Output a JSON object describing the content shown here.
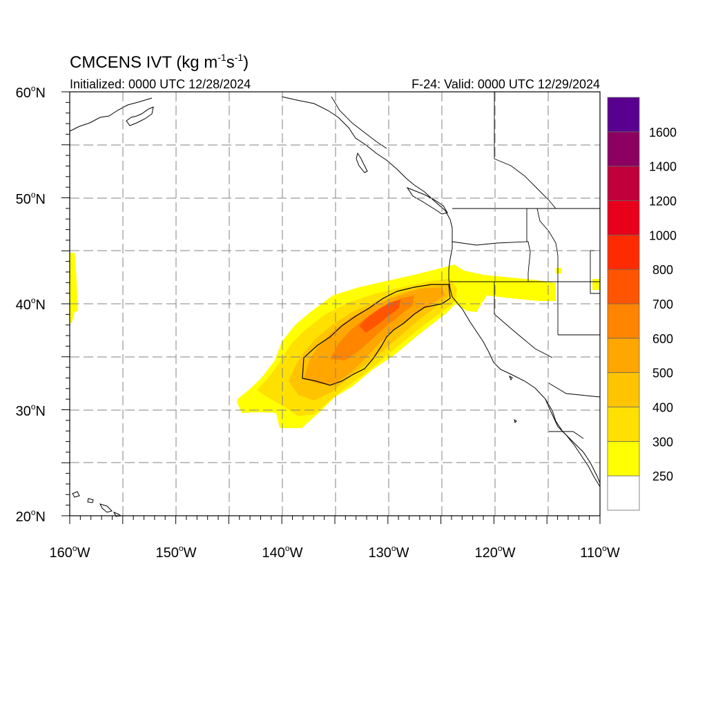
{
  "title": {
    "main": "CMCENS IVT (kg m",
    "exp1": "-1",
    "mid": "s",
    "exp2": "-1",
    "close": ")"
  },
  "subtitle_left": "Initialized: 0000 UTC 12/28/2024",
  "subtitle_right": "F-24: Valid: 0000 UTC 12/29/2024",
  "map": {
    "lon_range": [
      -160,
      -110
    ],
    "lat_range": [
      20,
      60
    ],
    "lat_labels": [
      {
        "num": "60",
        "deg": "o",
        "hem": "N"
      },
      {
        "num": "50",
        "deg": "o",
        "hem": "N"
      },
      {
        "num": "40",
        "deg": "o",
        "hem": "N"
      },
      {
        "num": "30",
        "deg": "o",
        "hem": "N"
      },
      {
        "num": "20",
        "deg": "o",
        "hem": "N"
      }
    ],
    "lon_labels": [
      {
        "num": "160",
        "deg": "o",
        "hem": "W"
      },
      {
        "num": "150",
        "deg": "o",
        "hem": "W"
      },
      {
        "num": "140",
        "deg": "o",
        "hem": "W"
      },
      {
        "num": "130",
        "deg": "o",
        "hem": "W"
      },
      {
        "num": "120",
        "deg": "o",
        "hem": "W"
      },
      {
        "num": "110",
        "deg": "o",
        "hem": "W"
      }
    ],
    "gridlines": "dashed every 5 degrees"
  },
  "colorbar": {
    "levels": [
      "250",
      "300",
      "400",
      "500",
      "600",
      "700",
      "800",
      "1000",
      "1200",
      "1400",
      "1600"
    ],
    "colors": [
      "#ffffff",
      "#ffff00",
      "#ffe000",
      "#ffc400",
      "#ffa600",
      "#ff8500",
      "#ff5500",
      "#ff2b00",
      "#e8001a",
      "#c0003a",
      "#8b0060",
      "#5a0090"
    ]
  }
}
